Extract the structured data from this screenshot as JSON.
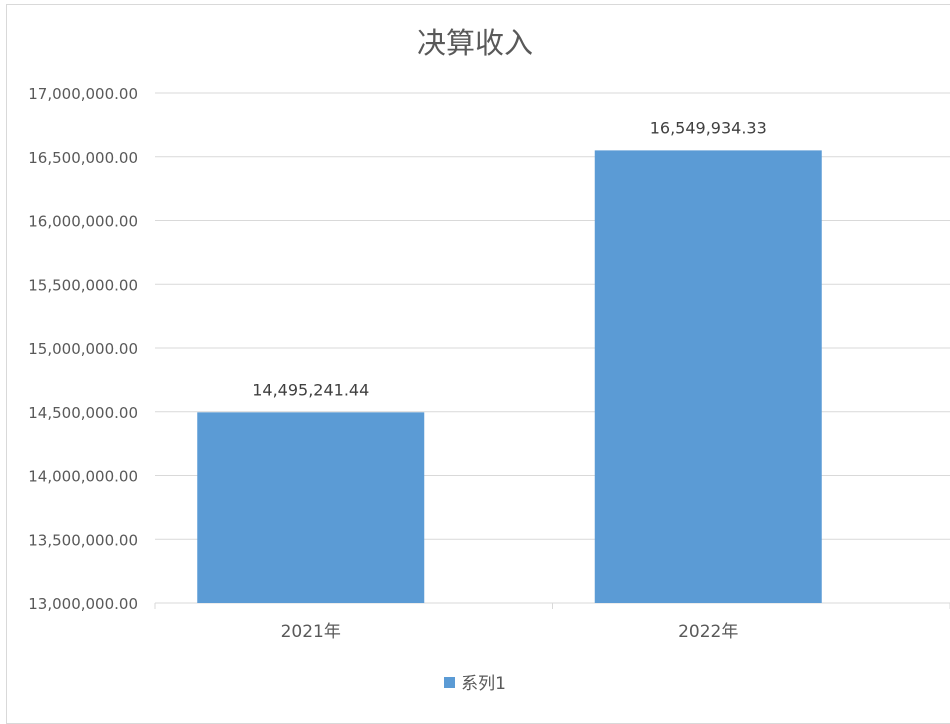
{
  "chart_data": {
    "type": "bar",
    "title": "决算收入",
    "categories": [
      "2021年",
      "2022年"
    ],
    "series": [
      {
        "name": "系列1",
        "values": [
          14495241.44,
          16549934.33
        ]
      }
    ],
    "data_labels": [
      "14,495,241.44",
      "16,549,934.33"
    ],
    "ylim": [
      13000000,
      17000000
    ],
    "yticks": [
      "13,000,000.00",
      "13,500,000.00",
      "14,000,000.00",
      "14,500,000.00",
      "15,000,000.00",
      "15,500,000.00",
      "16,000,000.00",
      "16,500,000.00",
      "17,000,000.00"
    ],
    "ytick_values": [
      13000000,
      13500000,
      14000000,
      14500000,
      15000000,
      15500000,
      16000000,
      16500000,
      17000000
    ],
    "grid": true,
    "legend": "bottom",
    "colors": {
      "bar": "#5b9bd5",
      "grid": "#d9d9d9",
      "text": "#595959"
    }
  }
}
